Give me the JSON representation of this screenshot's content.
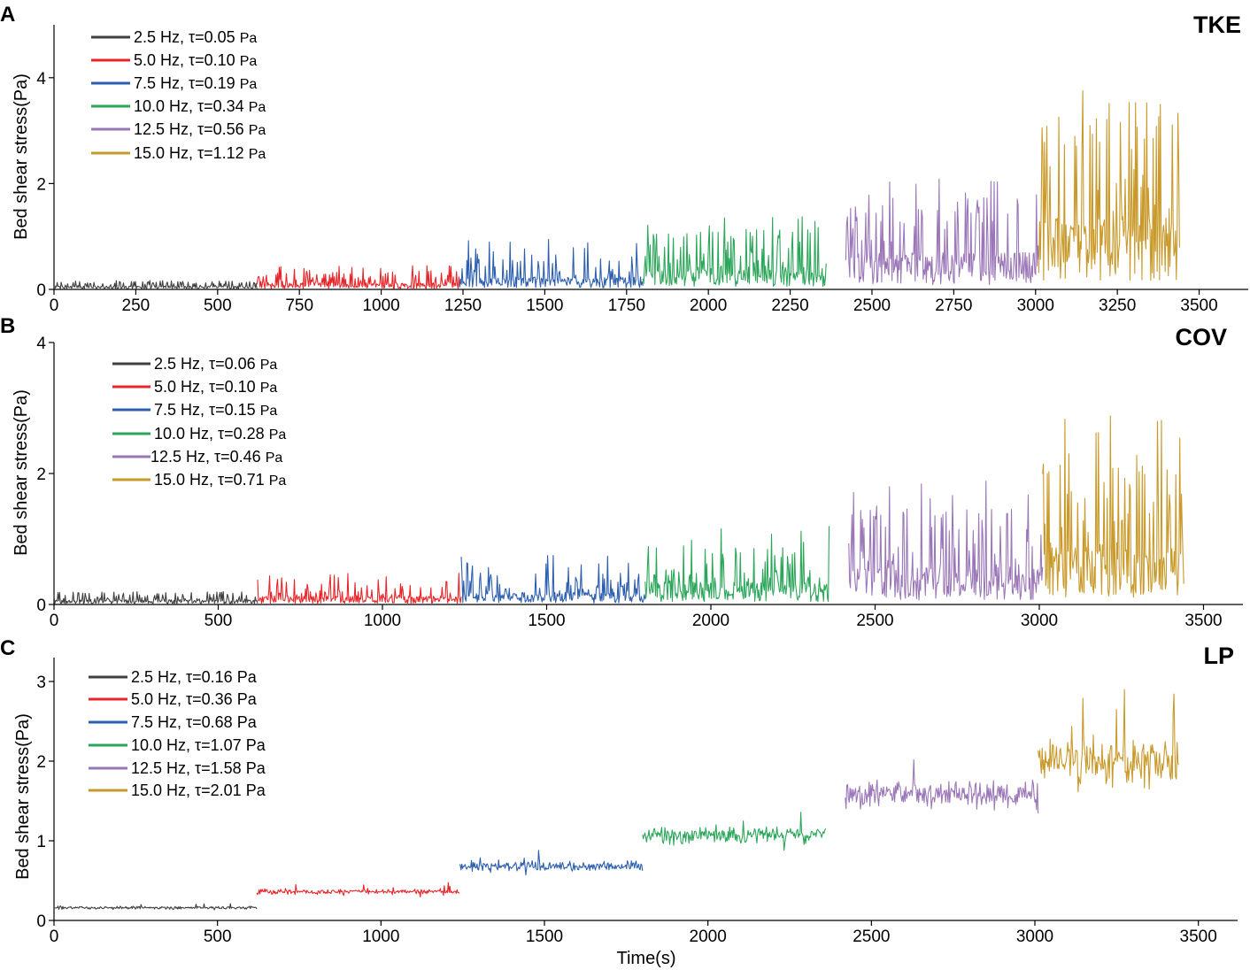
{
  "figure": {
    "panel_letters": [
      "A",
      "B",
      "C"
    ]
  },
  "chart_data": [
    {
      "panel": "A",
      "type": "line",
      "title": "TKE",
      "xlabel": "",
      "ylabel": "Bed shear stress(Pa)",
      "xlim": [
        0,
        3650
      ],
      "ylim": [
        0,
        5
      ],
      "xticks": [
        0,
        250,
        500,
        750,
        1000,
        1250,
        1500,
        1750,
        2000,
        2250,
        2500,
        2750,
        3000,
        3250,
        3500
      ],
      "yticks": [
        0,
        2,
        4
      ],
      "series": [
        {
          "name": "2.5 Hz, τ=0.05 Pa",
          "freq": "2.5 Hz, τ=0.05",
          "unit": "Pa",
          "color": "#404040",
          "x_range": [
            0,
            620
          ],
          "mean": 0.05,
          "peak": 0.18
        },
        {
          "name": "5.0 Hz, τ=0.10 Pa",
          "freq": "5.0 Hz, τ=0.10",
          "unit": "Pa",
          "color": "#e8262a",
          "x_range": [
            620,
            1240
          ],
          "mean": 0.1,
          "peak": 0.45
        },
        {
          "name": "7.5 Hz, τ=0.19 Pa",
          "freq": "7.5 Hz, τ=0.19",
          "unit": "Pa",
          "color": "#2d5fb0",
          "x_range": [
            1240,
            1800
          ],
          "mean": 0.19,
          "peak": 0.95
        },
        {
          "name": "10.0 Hz, τ=0.34 Pa",
          "freq": "10.0 Hz, τ=0.34",
          "unit": "Pa",
          "color": "#2ca65a",
          "x_range": [
            1800,
            2360
          ],
          "mean": 0.34,
          "peak": 1.42
        },
        {
          "name": "12.5 Hz, τ=0.56 Pa",
          "freq": "12.5 Hz, τ=0.56",
          "unit": "Pa",
          "color": "#9b77b8",
          "x_range": [
            2420,
            3010
          ],
          "mean": 0.56,
          "peak": 2.1
        },
        {
          "name": "15.0 Hz, τ=1.12 Pa",
          "freq": "15.0 Hz, τ=1.12",
          "unit": "Pa",
          "color": "#c99a2b",
          "x_range": [
            3010,
            3440
          ],
          "mean": 1.12,
          "peak": 3.95
        }
      ]
    },
    {
      "panel": "B",
      "type": "line",
      "title": "COV",
      "xlabel": "",
      "ylabel": "Bed shear stress(Pa)",
      "xlim": [
        0,
        3620
      ],
      "ylim": [
        0,
        4
      ],
      "xticks": [
        0,
        500,
        1000,
        1500,
        2000,
        2500,
        3000,
        3500
      ],
      "yticks": [
        0,
        2,
        4
      ],
      "series": [
        {
          "name": "2.5 Hz, τ=0.06 Pa",
          "freq": "2.5 Hz, τ=0.06",
          "unit": "Pa",
          "color": "#404040",
          "x_range": [
            0,
            620
          ],
          "mean": 0.06,
          "peak": 0.2
        },
        {
          "name": "5.0 Hz, τ=0.10 Pa",
          "freq": "5.0 Hz, τ=0.10",
          "unit": "Pa",
          "color": "#e8262a",
          "x_range": [
            620,
            1240
          ],
          "mean": 0.1,
          "peak": 0.48
        },
        {
          "name": "7.5 Hz, τ=0.15 Pa",
          "freq": "7.5 Hz, τ=0.15",
          "unit": "Pa",
          "color": "#2d5fb0",
          "x_range": [
            1240,
            1800
          ],
          "mean": 0.15,
          "peak": 0.8
        },
        {
          "name": "10.0 Hz, τ=0.28 Pa",
          "freq": "10.0 Hz, τ=0.28",
          "unit": "Pa",
          "color": "#2ca65a",
          "x_range": [
            1800,
            2360
          ],
          "mean": 0.28,
          "peak": 1.25
        },
        {
          "name": "12.5 Hz, τ=0.46 Pa",
          "freq": "12.5 Hz, τ=0.46",
          "unit": "Pa",
          "color": "#9b77b8",
          "x_range": [
            2420,
            3010
          ],
          "mean": 0.46,
          "peak": 1.98
        },
        {
          "name": "15.0 Hz, τ=0.71 Pa",
          "freq": "15.0 Hz, τ=0.71",
          "unit": "Pa",
          "color": "#c99a2b",
          "x_range": [
            3010,
            3440
          ],
          "mean": 0.71,
          "peak": 2.95
        }
      ]
    },
    {
      "panel": "C",
      "type": "line",
      "title": "LP",
      "xlabel": "Time(s)",
      "ylabel": "Bed shear stress(Pa)",
      "xlim": [
        0,
        3620
      ],
      "ylim": [
        0,
        3.3
      ],
      "xticks": [
        0,
        500,
        1000,
        1500,
        2000,
        2500,
        3000,
        3500
      ],
      "yticks": [
        0,
        1,
        2,
        3
      ],
      "series": [
        {
          "name": "2.5 Hz, τ=0.16 Pa",
          "freq": "2.5 Hz, τ=0.16",
          "unit": "Pa",
          "color": "#404040",
          "x_range": [
            0,
            620
          ],
          "mean": 0.16,
          "peak": 0.22
        },
        {
          "name": "5.0 Hz, τ=0.36 Pa",
          "freq": "5.0 Hz, τ=0.36",
          "unit": "Pa",
          "color": "#e8262a",
          "x_range": [
            620,
            1240
          ],
          "mean": 0.36,
          "peak": 0.48
        },
        {
          "name": "7.5 Hz, τ=0.68 Pa",
          "freq": "7.5 Hz, τ=0.68",
          "unit": "Pa",
          "color": "#2d5fb0",
          "x_range": [
            1240,
            1800
          ],
          "mean": 0.68,
          "peak": 0.88
        },
        {
          "name": "10.0 Hz, τ=1.07 Pa",
          "freq": "10.0 Hz, τ=1.07",
          "unit": "Pa",
          "color": "#2ca65a",
          "x_range": [
            1800,
            2360
          ],
          "mean": 1.07,
          "peak": 1.42
        },
        {
          "name": "12.5 Hz, τ=1.58 Pa",
          "freq": "12.5 Hz, τ=1.58",
          "unit": "Pa",
          "color": "#9b77b8",
          "x_range": [
            2420,
            3010
          ],
          "mean": 1.58,
          "peak": 2.1
        },
        {
          "name": "15.0 Hz, τ=2.01 Pa",
          "freq": "15.0 Hz, τ=2.01",
          "unit": "Pa",
          "color": "#c99a2b",
          "x_range": [
            3010,
            3440
          ],
          "mean": 2.01,
          "peak": 2.9
        }
      ]
    }
  ]
}
